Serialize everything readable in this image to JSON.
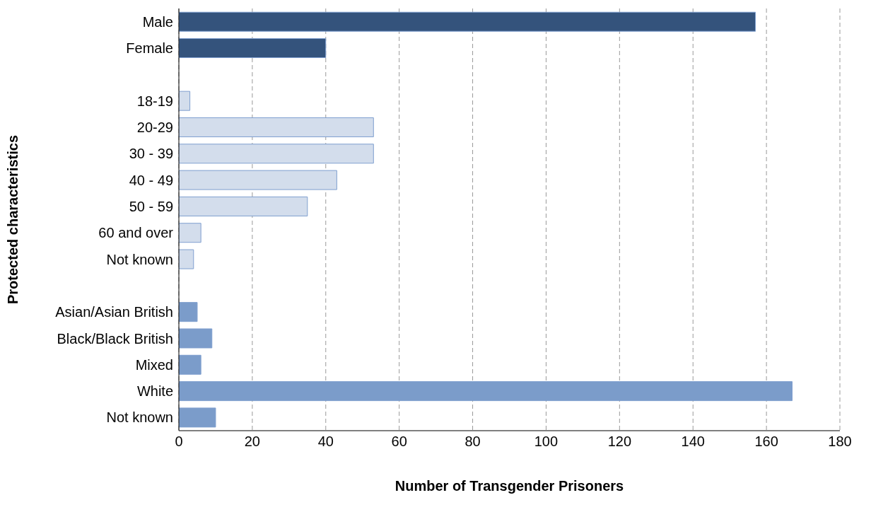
{
  "chart_data": {
    "type": "bar",
    "orientation": "horizontal",
    "xlabel": "Number of Transgender Prisoners",
    "ylabel": "Protected characteristics",
    "categories": [
      "Male",
      "Female",
      null,
      "18-19",
      "20-29",
      "30 - 39",
      "40 - 49",
      "50 - 59",
      "60 and over",
      "Not known",
      null,
      "Asian/Asian British",
      "Black/Black British",
      "Mixed",
      "White",
      "Not known"
    ],
    "values": [
      157,
      40,
      null,
      3,
      53,
      53,
      43,
      35,
      6,
      4,
      null,
      5,
      9,
      6,
      167,
      10
    ],
    "colors": [
      "#34537c",
      "#34537c",
      null,
      "#d3ddec",
      "#d3ddec",
      "#d3ddec",
      "#d3ddec",
      "#d3ddec",
      "#d3ddec",
      "#d3ddec",
      null,
      "#7b9cca",
      "#7b9cca",
      "#7b9cca",
      "#7b9cca",
      "#7b9cca"
    ],
    "xlim": [
      0,
      180
    ],
    "xticks": [
      0,
      20,
      40,
      60,
      80,
      100,
      120,
      140,
      160,
      180
    ],
    "grid": "x"
  }
}
